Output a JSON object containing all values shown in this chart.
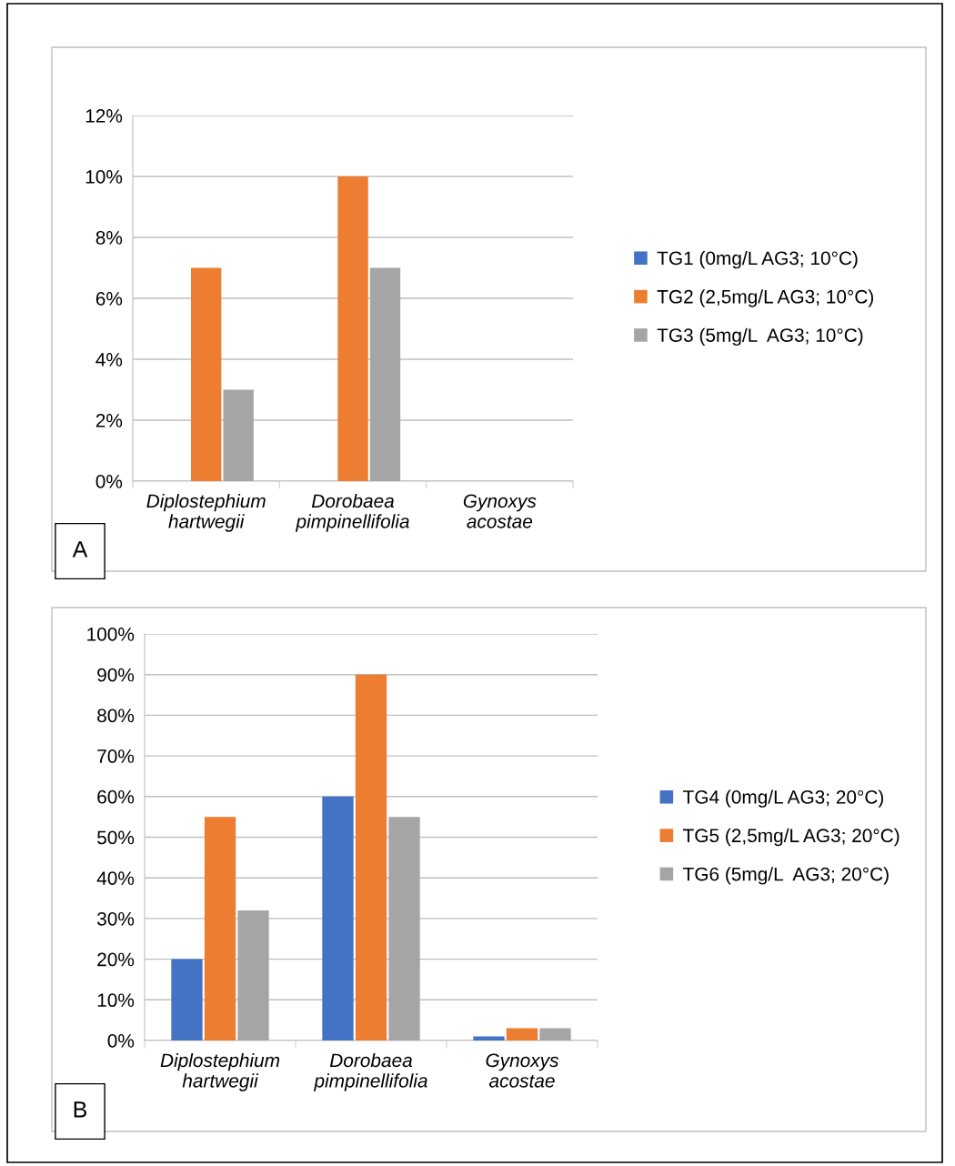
{
  "chart_data": [
    {
      "type": "bar",
      "categories": [
        "Diplostephium\nhartwegii",
        "Dorobaea\npimpinellifolia",
        "Gynoxys\nacostae"
      ],
      "series": [
        {
          "name": "TG1 (0mg/L AG3; 10°C)",
          "color": "#4472c4",
          "values": [
            0,
            0,
            0
          ]
        },
        {
          "name": "TG2 (2,5mg/L AG3; 10°C)",
          "color": "#ed7d31",
          "values": [
            7,
            10,
            0
          ]
        },
        {
          "name": "TG3 (5mg/L  AG3; 10°C)",
          "color": "#a5a5a5",
          "values": [
            3,
            7,
            0
          ]
        }
      ],
      "ylim": [
        0,
        12
      ],
      "yticks": [
        {
          "value": 0,
          "label": "0%"
        },
        {
          "value": 2,
          "label": "2%"
        },
        {
          "value": 4,
          "label": "4%"
        },
        {
          "value": 6,
          "label": "6%"
        },
        {
          "value": 8,
          "label": "8%"
        },
        {
          "value": 10,
          "label": "10%"
        },
        {
          "value": 12,
          "label": "12%"
        }
      ],
      "grid": "y",
      "legend": "right",
      "annotations": [
        "A"
      ]
    },
    {
      "type": "bar",
      "categories": [
        "Diplostephium\nhartwegii",
        "Dorobaea\npimpinellifolia",
        "Gynoxys\nacostae"
      ],
      "series": [
        {
          "name": "TG4 (0mg/L AG3; 20°C)",
          "color": "#4472c4",
          "values": [
            20,
            60,
            1
          ]
        },
        {
          "name": "TG5 (2,5mg/L AG3; 20°C)",
          "color": "#ed7d31",
          "values": [
            55,
            90,
            3
          ]
        },
        {
          "name": "TG6 (5mg/L  AG3; 20°C)",
          "color": "#a5a5a5",
          "values": [
            32,
            55,
            3
          ]
        }
      ],
      "ylim": [
        0,
        100
      ],
      "yticks": [
        {
          "value": 0,
          "label": "0%"
        },
        {
          "value": 10,
          "label": "10%"
        },
        {
          "value": 20,
          "label": "20%"
        },
        {
          "value": 30,
          "label": "30%"
        },
        {
          "value": 40,
          "label": "40%"
        },
        {
          "value": 50,
          "label": "50%"
        },
        {
          "value": 60,
          "label": "60%"
        },
        {
          "value": 70,
          "label": "70%"
        },
        {
          "value": 80,
          "label": "80%"
        },
        {
          "value": 90,
          "label": "90%"
        },
        {
          "value": 100,
          "label": "100%"
        }
      ],
      "grid": "y",
      "legend": "right",
      "annotations": [
        "B"
      ]
    }
  ]
}
